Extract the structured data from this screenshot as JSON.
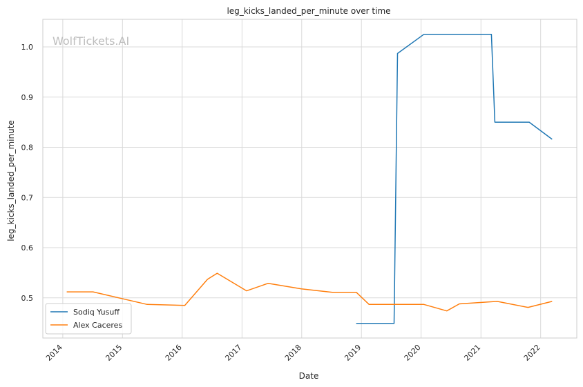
{
  "chart_data": {
    "type": "line",
    "title": "leg_kicks_landed_per_minute over time",
    "xlabel": "Date",
    "ylabel": "leg_kicks_landed_per_minute",
    "x_ticks": [
      "2014",
      "2015",
      "2016",
      "2017",
      "2018",
      "2019",
      "2020",
      "2021",
      "2022"
    ],
    "y_ticks": [
      "0.5",
      "0.6",
      "0.7",
      "0.8",
      "0.9",
      "1.0"
    ],
    "xlim": [
      "2013-09-01",
      "2022-08-10"
    ],
    "ylim": [
      0.42,
      1.055
    ],
    "grid": true,
    "legend_position": "lower-left",
    "watermark": "WolfTickets.AI",
    "series": [
      {
        "name": "Sodiq Yusuff",
        "color": "#1f77b4",
        "x": [
          "2018-11-30",
          "2019-07-20",
          "2019-08-10",
          "2020-01-18",
          "2021-03-06",
          "2021-03-27",
          "2021-10-23",
          "2022-03-12"
        ],
        "y": [
          0.449,
          0.449,
          0.987,
          1.025,
          1.025,
          0.85,
          0.85,
          0.816
        ]
      },
      {
        "name": "Alex Caceres",
        "color": "#ff7f0e",
        "x": [
          "2014-01-25",
          "2014-07-05",
          "2015-06-01",
          "2016-01-17",
          "2016-06-04",
          "2016-08-02",
          "2017-01-29",
          "2017-06-10",
          "2017-12-30",
          "2018-07-07",
          "2018-12-01",
          "2019-02-17",
          "2020-01-18",
          "2020-06-06",
          "2020-08-22",
          "2021-04-10",
          "2021-10-16",
          "2022-03-12"
        ],
        "y": [
          0.512,
          0.512,
          0.487,
          0.485,
          0.537,
          0.549,
          0.514,
          0.529,
          0.518,
          0.511,
          0.511,
          0.487,
          0.487,
          0.474,
          0.488,
          0.493,
          0.481,
          0.493
        ]
      }
    ]
  }
}
